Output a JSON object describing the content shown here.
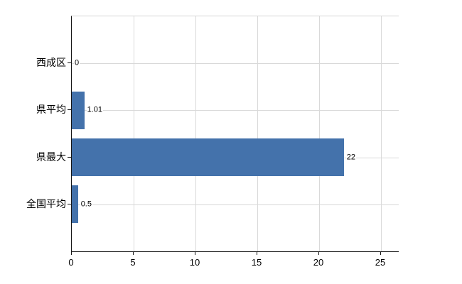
{
  "chart_data": {
    "type": "bar",
    "orientation": "horizontal",
    "title": "",
    "categories": [
      "西成区",
      "県平均",
      "県最大",
      "全国平均"
    ],
    "values": [
      0,
      1.01,
      22,
      0.5
    ],
    "data_labels": [
      "0",
      "1.01",
      "22",
      "0.5"
    ],
    "x_tick_values": [
      0,
      5,
      10,
      15,
      20,
      25
    ],
    "x_tick_labels": [
      "0",
      "5",
      "10",
      "15",
      "20",
      "25"
    ],
    "xlim": [
      0,
      26.4
    ],
    "grid": true,
    "legend_position": "none",
    "colors": {
      "bar": "#4472ab",
      "gridline": "#d9d9d9",
      "axis": "#151515",
      "plot_border_top": "#d4d4d4",
      "text": "#000000",
      "background": "#ffffff"
    }
  }
}
